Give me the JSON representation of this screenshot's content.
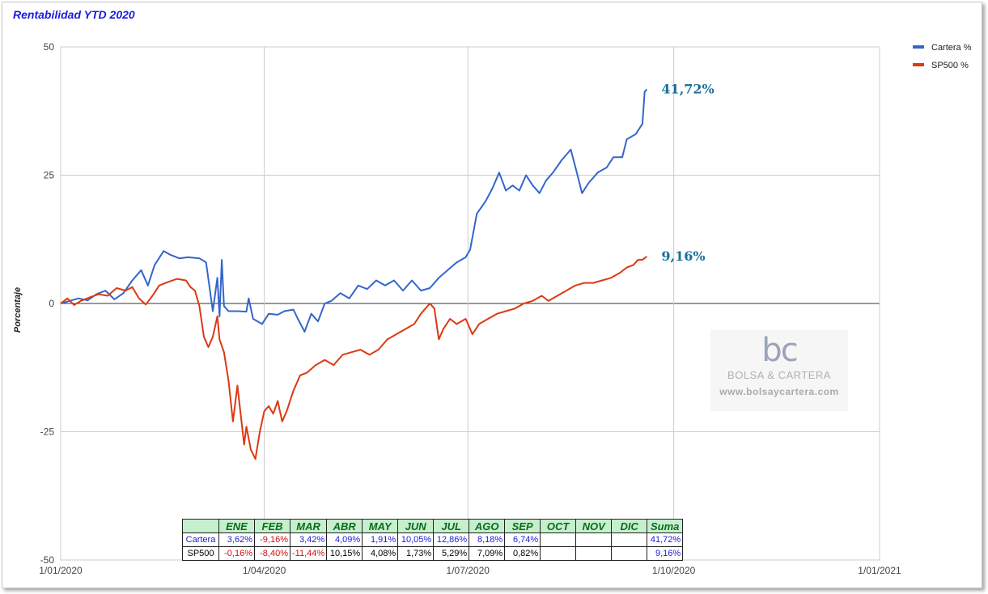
{
  "chart_data": {
    "type": "line",
    "title": "Rentabilidad YTD 2020",
    "xlabel": "",
    "ylabel": "Porcentaje",
    "ylim": [
      -50,
      50
    ],
    "yticks": [
      50,
      25,
      0,
      -25,
      -50
    ],
    "xlim": [
      "2020-01-01",
      "2021-01-01"
    ],
    "xticks": [
      "1/01/2020",
      "1/04/2020",
      "1/07/2020",
      "1/10/2020",
      "1/01/2021"
    ],
    "xtick_dates": [
      "2020-01-01",
      "2020-04-01",
      "2020-07-01",
      "2020-10-01",
      "2021-01-01"
    ],
    "grid": true,
    "legend_position": "top-right",
    "series": [
      {
        "name": "Cartera %",
        "color": "#3366cc",
        "end_label": "41,72%",
        "points": [
          [
            "2020-01-01",
            0
          ],
          [
            "2020-01-05",
            0.5
          ],
          [
            "2020-01-09",
            1
          ],
          [
            "2020-01-13",
            0.6
          ],
          [
            "2020-01-17",
            1.8
          ],
          [
            "2020-01-21",
            2.5
          ],
          [
            "2020-01-25",
            0.8
          ],
          [
            "2020-01-29",
            2
          ],
          [
            "2020-02-02",
            4.5
          ],
          [
            "2020-02-06",
            6.5
          ],
          [
            "2020-02-09",
            3.5
          ],
          [
            "2020-02-12",
            7.5
          ],
          [
            "2020-02-16",
            10.2
          ],
          [
            "2020-02-19",
            9.5
          ],
          [
            "2020-02-23",
            8.8
          ],
          [
            "2020-02-27",
            9
          ],
          [
            "2020-03-03",
            8.8
          ],
          [
            "2020-03-06",
            8
          ],
          [
            "2020-03-09",
            -1.5
          ],
          [
            "2020-03-11",
            5
          ],
          [
            "2020-03-12",
            -2.5
          ],
          [
            "2020-03-13",
            8.5
          ],
          [
            "2020-03-14",
            -0.5
          ],
          [
            "2020-03-16",
            -1.5
          ],
          [
            "2020-03-20",
            -1.5
          ],
          [
            "2020-03-24",
            -1.6
          ],
          [
            "2020-03-25",
            1
          ],
          [
            "2020-03-27",
            -3
          ],
          [
            "2020-03-31",
            -4
          ],
          [
            "2020-04-03",
            -2
          ],
          [
            "2020-04-07",
            -2.2
          ],
          [
            "2020-04-10",
            -1.5
          ],
          [
            "2020-04-14",
            -1.2
          ],
          [
            "2020-04-16",
            -3
          ],
          [
            "2020-04-19",
            -5.5
          ],
          [
            "2020-04-22",
            -2
          ],
          [
            "2020-04-25",
            -3.5
          ],
          [
            "2020-04-28",
            0
          ],
          [
            "2020-05-01",
            0.5
          ],
          [
            "2020-05-05",
            2
          ],
          [
            "2020-05-09",
            1
          ],
          [
            "2020-05-13",
            3.5
          ],
          [
            "2020-05-17",
            2.8
          ],
          [
            "2020-05-21",
            4.5
          ],
          [
            "2020-05-25",
            3.5
          ],
          [
            "2020-05-29",
            4.5
          ],
          [
            "2020-06-02",
            2.5
          ],
          [
            "2020-06-06",
            4.5
          ],
          [
            "2020-06-10",
            2.5
          ],
          [
            "2020-06-14",
            3
          ],
          [
            "2020-06-18",
            5
          ],
          [
            "2020-06-22",
            6.5
          ],
          [
            "2020-06-26",
            8
          ],
          [
            "2020-06-30",
            9
          ],
          [
            "2020-07-02",
            10.5
          ],
          [
            "2020-07-05",
            17.5
          ],
          [
            "2020-07-09",
            20
          ],
          [
            "2020-07-12",
            22.5
          ],
          [
            "2020-07-15",
            25.5
          ],
          [
            "2020-07-18",
            22
          ],
          [
            "2020-07-21",
            23
          ],
          [
            "2020-07-24",
            22
          ],
          [
            "2020-07-27",
            25
          ],
          [
            "2020-07-30",
            23
          ],
          [
            "2020-08-02",
            21.5
          ],
          [
            "2020-08-05",
            24
          ],
          [
            "2020-08-08",
            25.5
          ],
          [
            "2020-08-12",
            28
          ],
          [
            "2020-08-16",
            30
          ],
          [
            "2020-08-19",
            25
          ],
          [
            "2020-08-21",
            21.5
          ],
          [
            "2020-08-24",
            23.5
          ],
          [
            "2020-08-28",
            25.5
          ],
          [
            "2020-09-01",
            26.5
          ],
          [
            "2020-09-04",
            28.5
          ],
          [
            "2020-09-08",
            28.5
          ],
          [
            "2020-09-10",
            32
          ],
          [
            "2020-09-14",
            33
          ],
          [
            "2020-09-17",
            35
          ],
          [
            "2020-09-18",
            41.3
          ],
          [
            "2020-09-19",
            41.72
          ]
        ]
      },
      {
        "name": "SP500 %",
        "color": "#dc3912",
        "end_label": "9,16%",
        "points": [
          [
            "2020-01-01",
            0
          ],
          [
            "2020-01-04",
            1
          ],
          [
            "2020-01-07",
            -0.3
          ],
          [
            "2020-01-10",
            0.5
          ],
          [
            "2020-01-14",
            1.2
          ],
          [
            "2020-01-18",
            1.8
          ],
          [
            "2020-01-22",
            1.5
          ],
          [
            "2020-01-26",
            3
          ],
          [
            "2020-01-30",
            2.5
          ],
          [
            "2020-02-02",
            3.2
          ],
          [
            "2020-02-05",
            1
          ],
          [
            "2020-02-08",
            -0.2
          ],
          [
            "2020-02-11",
            1.5
          ],
          [
            "2020-02-14",
            3.5
          ],
          [
            "2020-02-18",
            4.2
          ],
          [
            "2020-02-22",
            4.8
          ],
          [
            "2020-02-26",
            4.5
          ],
          [
            "2020-02-28",
            3.2
          ],
          [
            "2020-03-01",
            2.5
          ],
          [
            "2020-03-03",
            -0.5
          ],
          [
            "2020-03-05",
            -6.5
          ],
          [
            "2020-03-07",
            -8.5
          ],
          [
            "2020-03-09",
            -6.5
          ],
          [
            "2020-03-11",
            -2.5
          ],
          [
            "2020-03-12",
            -7
          ],
          [
            "2020-03-14",
            -9.5
          ],
          [
            "2020-03-16",
            -15
          ],
          [
            "2020-03-18",
            -23
          ],
          [
            "2020-03-20",
            -16
          ],
          [
            "2020-03-23",
            -27.5
          ],
          [
            "2020-03-24",
            -24
          ],
          [
            "2020-03-26",
            -28.5
          ],
          [
            "2020-03-28",
            -30.3
          ],
          [
            "2020-03-30",
            -25
          ],
          [
            "2020-04-01",
            -21
          ],
          [
            "2020-04-03",
            -20
          ],
          [
            "2020-04-05",
            -21.5
          ],
          [
            "2020-04-07",
            -19
          ],
          [
            "2020-04-09",
            -23
          ],
          [
            "2020-04-11",
            -21
          ],
          [
            "2020-04-14",
            -17
          ],
          [
            "2020-04-17",
            -14
          ],
          [
            "2020-04-20",
            -13.5
          ],
          [
            "2020-04-24",
            -12
          ],
          [
            "2020-04-28",
            -11
          ],
          [
            "2020-05-02",
            -12
          ],
          [
            "2020-05-06",
            -10
          ],
          [
            "2020-05-10",
            -9.5
          ],
          [
            "2020-05-14",
            -9
          ],
          [
            "2020-05-18",
            -10
          ],
          [
            "2020-05-22",
            -9
          ],
          [
            "2020-05-26",
            -7
          ],
          [
            "2020-05-30",
            -6
          ],
          [
            "2020-06-03",
            -5
          ],
          [
            "2020-06-07",
            -4
          ],
          [
            "2020-06-10",
            -2
          ],
          [
            "2020-06-12",
            -1
          ],
          [
            "2020-06-14",
            0
          ],
          [
            "2020-06-16",
            -1
          ],
          [
            "2020-06-18",
            -7
          ],
          [
            "2020-06-20",
            -5
          ],
          [
            "2020-06-23",
            -3
          ],
          [
            "2020-06-26",
            -4
          ],
          [
            "2020-06-30",
            -3
          ],
          [
            "2020-07-03",
            -6
          ],
          [
            "2020-07-06",
            -4
          ],
          [
            "2020-07-10",
            -3
          ],
          [
            "2020-07-14",
            -2
          ],
          [
            "2020-07-18",
            -1.5
          ],
          [
            "2020-07-22",
            -1
          ],
          [
            "2020-07-26",
            0
          ],
          [
            "2020-07-30",
            0.5
          ],
          [
            "2020-08-03",
            1.5
          ],
          [
            "2020-08-06",
            0.5
          ],
          [
            "2020-08-10",
            1.5
          ],
          [
            "2020-08-14",
            2.5
          ],
          [
            "2020-08-18",
            3.5
          ],
          [
            "2020-08-22",
            4
          ],
          [
            "2020-08-26",
            4
          ],
          [
            "2020-08-30",
            4.5
          ],
          [
            "2020-09-03",
            5
          ],
          [
            "2020-09-07",
            6
          ],
          [
            "2020-09-10",
            7
          ],
          [
            "2020-09-13",
            7.5
          ],
          [
            "2020-09-15",
            8.5
          ],
          [
            "2020-09-17",
            8.5
          ],
          [
            "2020-09-19",
            9.16
          ]
        ]
      }
    ]
  },
  "table": {
    "columns": [
      "ENE",
      "FEB",
      "MAR",
      "ABR",
      "MAY",
      "JUN",
      "JUL",
      "AGO",
      "SEP",
      "OCT",
      "NOV",
      "DIC",
      "Suma"
    ],
    "rows": [
      {
        "name": "Cartera",
        "values": [
          "3,62%",
          "-9,16%",
          "3,42%",
          "4,09%",
          "1,91%",
          "10,05%",
          "12,86%",
          "8,18%",
          "6,74%",
          "",
          "",
          "",
          "41,72%"
        ],
        "colors": [
          "blue",
          "red",
          "blue",
          "blue",
          "blue",
          "blue",
          "blue",
          "blue",
          "blue",
          "",
          "",
          "",
          "blue"
        ]
      },
      {
        "name": "SP500",
        "values": [
          "-0,16%",
          "-8,40%",
          "-11,44%",
          "10,15%",
          "4,08%",
          "1,73%",
          "5,29%",
          "7,09%",
          "0,82%",
          "",
          "",
          "",
          "9,16%"
        ],
        "colors": [
          "red",
          "red",
          "red",
          "black",
          "black",
          "black",
          "black",
          "black",
          "black",
          "",
          "",
          "",
          "blue"
        ]
      }
    ]
  },
  "watermark": {
    "logo": "bc",
    "name": "BOLSA & CARTERA",
    "url": "www.bolsaycartera.com"
  }
}
